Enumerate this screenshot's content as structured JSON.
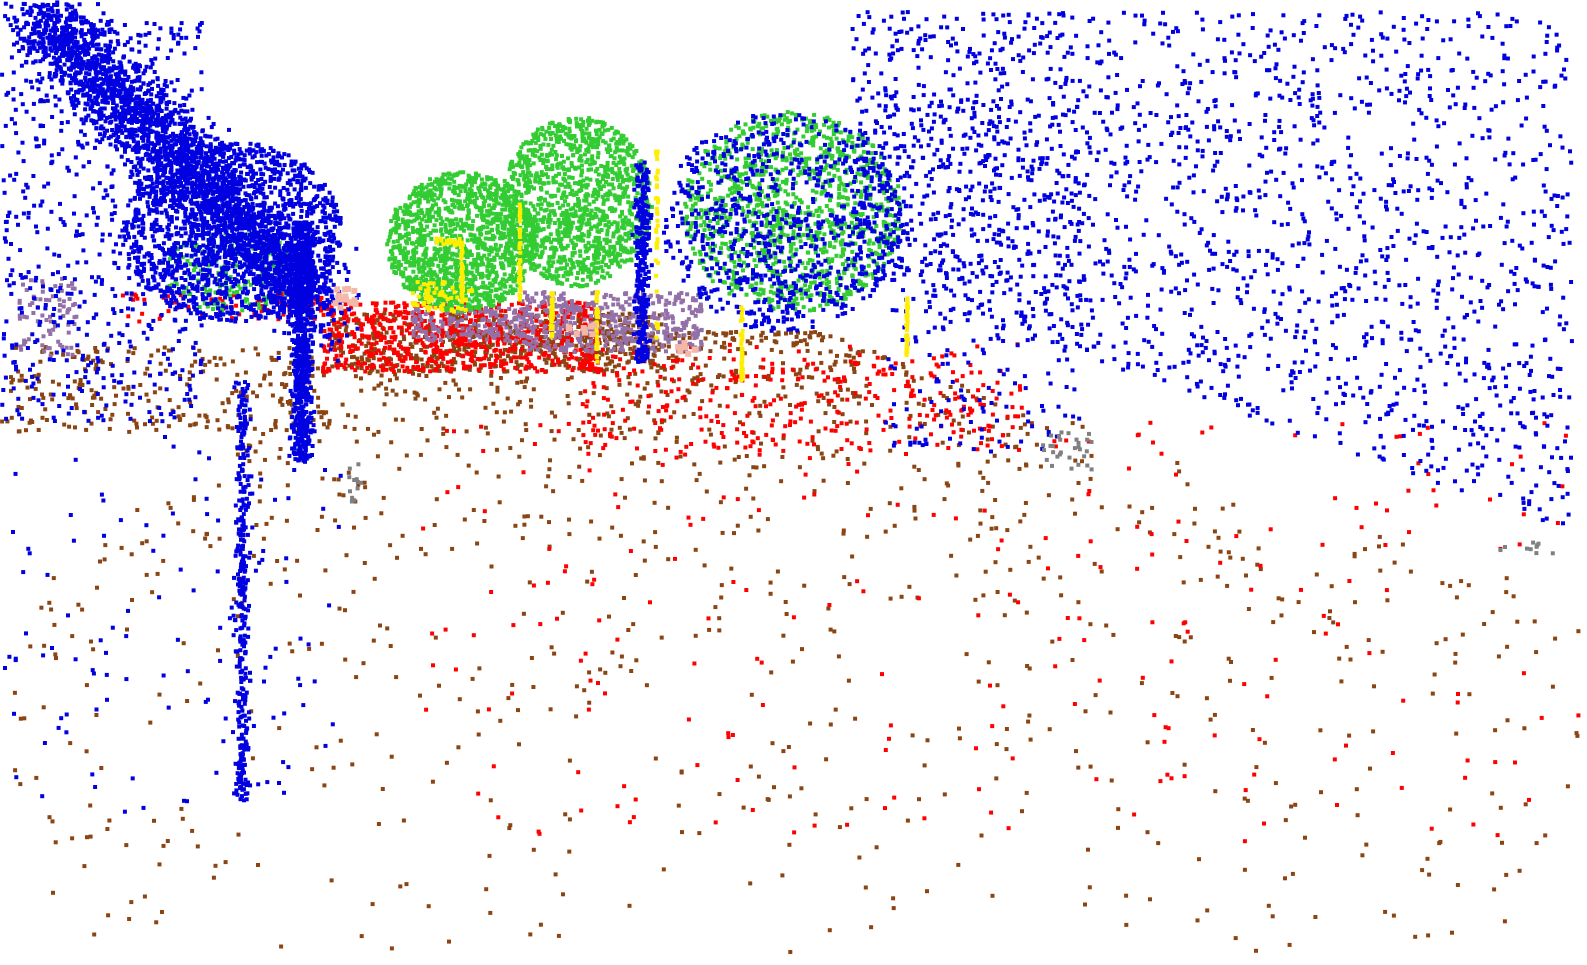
{
  "scene": {
    "description_kind": "semantic-segmentation point cloud render",
    "background_color": "#ffffff",
    "classes": [
      {
        "name": "vegetation-blue",
        "color": "#0000e0"
      },
      {
        "name": "tree-canopy",
        "color": "#33cc33"
      },
      {
        "name": "road",
        "color": "#8b4513"
      },
      {
        "name": "car",
        "color": "#ff0000"
      },
      {
        "name": "building-wall",
        "color": "#9370a8"
      },
      {
        "name": "pole",
        "color": "#ffee00"
      },
      {
        "name": "misc-object",
        "color": "#808080"
      },
      {
        "name": "pedestrian",
        "color": "#f4b8a8"
      }
    ]
  }
}
